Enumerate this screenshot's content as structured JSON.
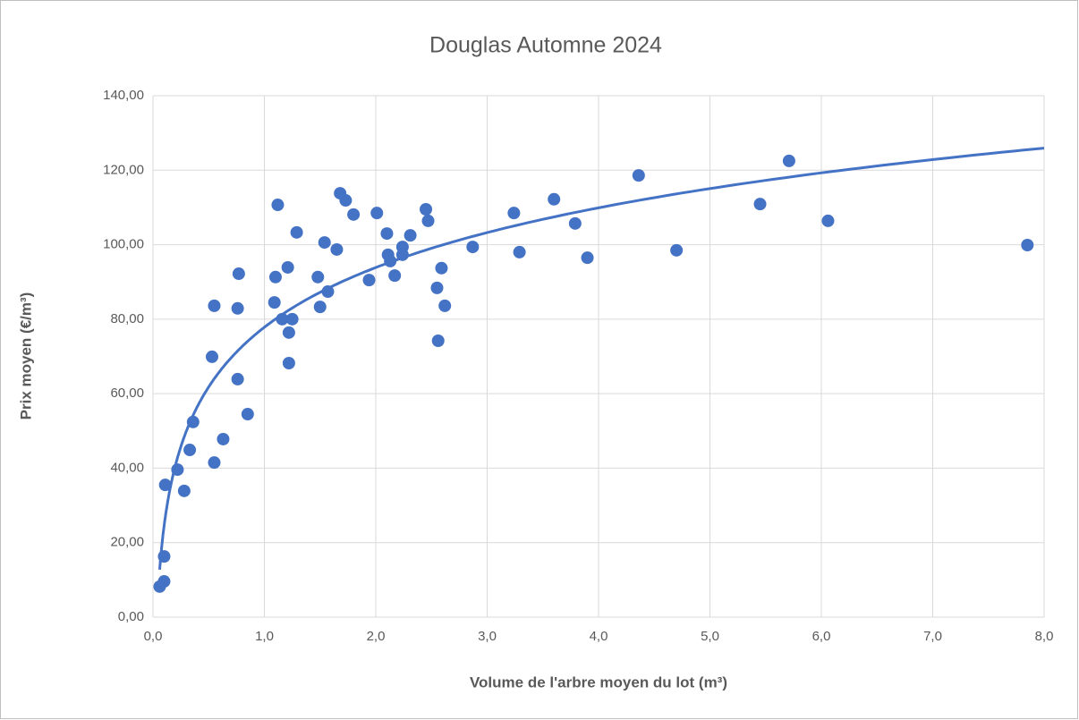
{
  "chart_data": {
    "type": "scatter",
    "title": "Douglas Automne 2024",
    "x_label": "Volume de l'arbre moyen du lot (m³)",
    "y_label": "Prix moyen (€/m³)",
    "color": "#4472c4",
    "trendline": "logarithmic",
    "grid": true,
    "xlim": [
      0,
      8
    ],
    "ylim": [
      0,
      140
    ],
    "xticks": [
      {
        "value": 0,
        "label": "0,0"
      },
      {
        "value": 1,
        "label": "1,0"
      },
      {
        "value": 2,
        "label": "2,0"
      },
      {
        "value": 3,
        "label": "3,0"
      },
      {
        "value": 4,
        "label": "4,0"
      },
      {
        "value": 5,
        "label": "5,0"
      },
      {
        "value": 6,
        "label": "6,0"
      },
      {
        "value": 7,
        "label": "7,0"
      },
      {
        "value": 8,
        "label": "8,0"
      }
    ],
    "yticks": [
      {
        "value": 0,
        "label": "0,00"
      },
      {
        "value": 20,
        "label": "20,00"
      },
      {
        "value": 40,
        "label": "40,00"
      },
      {
        "value": 60,
        "label": "60,00"
      },
      {
        "value": 80,
        "label": "80,00"
      },
      {
        "value": 100,
        "label": "100,00"
      },
      {
        "value": 120,
        "label": "120,00"
      },
      {
        "value": 140,
        "label": "140,00"
      }
    ],
    "x": [
      0.06,
      0.1,
      0.1,
      0.11,
      0.22,
      0.28,
      0.33,
      0.36,
      0.53,
      0.55,
      0.55,
      0.63,
      0.76,
      0.76,
      0.77,
      0.85,
      1.09,
      1.1,
      1.12,
      1.16,
      1.21,
      1.22,
      1.22,
      1.25,
      1.29,
      1.48,
      1.5,
      1.54,
      1.57,
      1.65,
      1.68,
      1.73,
      1.8,
      1.94,
      2.01,
      2.1,
      2.11,
      2.13,
      2.17,
      2.24,
      2.24,
      2.31,
      2.45,
      2.47,
      2.55,
      2.56,
      2.59,
      2.62,
      2.87,
      3.24,
      3.29,
      3.6,
      3.79,
      3.9,
      4.36,
      4.7,
      5.45,
      5.71,
      6.06,
      7.85
    ],
    "y": [
      8.2,
      16.3,
      9.6,
      35.5,
      39.6,
      33.9,
      44.9,
      52.4,
      69.9,
      83.6,
      41.5,
      47.8,
      63.9,
      82.9,
      92.2,
      54.5,
      84.5,
      91.3,
      110.7,
      80.0,
      93.9,
      76.4,
      68.2,
      80.0,
      103.3,
      91.3,
      83.3,
      100.6,
      87.4,
      98.7,
      113.8,
      111.9,
      108.1,
      90.5,
      108.5,
      103.0,
      97.3,
      95.6,
      91.7,
      99.4,
      97.3,
      102.5,
      109.5,
      106.4,
      88.4,
      74.2,
      93.7,
      83.6,
      99.4,
      108.5,
      98.0,
      112.2,
      105.7,
      96.5,
      118.6,
      98.5,
      110.9,
      122.5,
      106.4,
      99.9
    ]
  }
}
